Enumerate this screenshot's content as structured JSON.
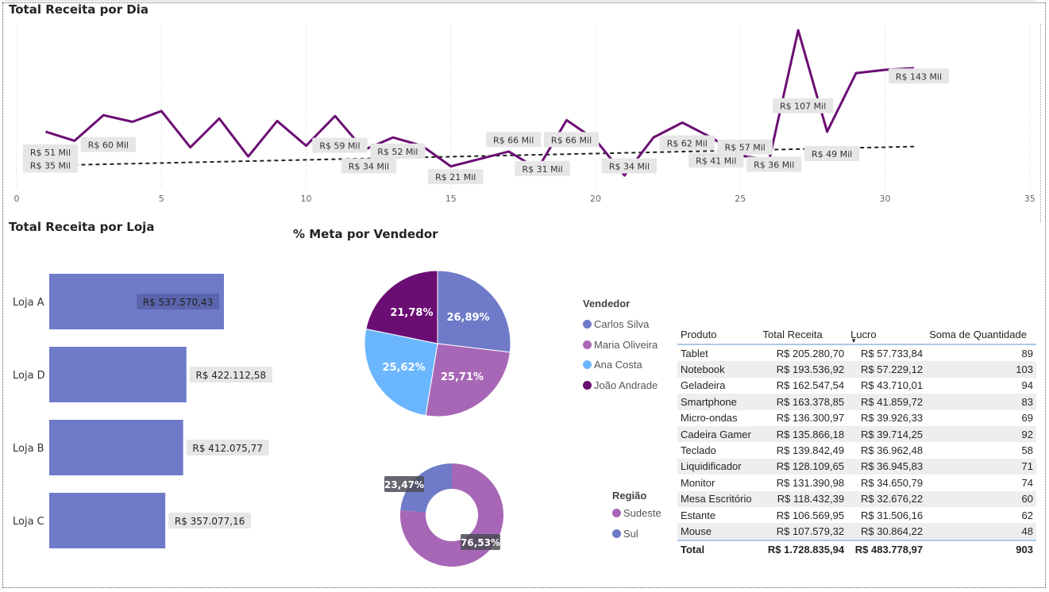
{
  "line_chart": {
    "title": "Total Receita por Dia",
    "x_ticks": [
      "0",
      "5",
      "10",
      "15",
      "20",
      "25",
      "30",
      "35"
    ],
    "data_labels": [
      {
        "x": 1,
        "y": 51,
        "text": "R$ 51 Mil"
      },
      {
        "x": 1,
        "y": 35,
        "text": "R$ 35 Mil"
      },
      {
        "x": 3,
        "y": 60,
        "text": "R$ 60 Mil"
      },
      {
        "x": 11,
        "y": 59,
        "text": "R$ 59 Mil"
      },
      {
        "x": 12,
        "y": 34,
        "text": "R$ 34 Mil"
      },
      {
        "x": 13,
        "y": 52,
        "text": "R$ 52 Mil"
      },
      {
        "x": 15,
        "y": 21,
        "text": "R$ 21 Mil"
      },
      {
        "x": 17,
        "y": 66,
        "text": "R$ 66 Mil"
      },
      {
        "x": 18,
        "y": 31,
        "text": "R$ 31 Mil"
      },
      {
        "x": 19,
        "y": 66,
        "text": "R$ 66 Mil"
      },
      {
        "x": 21,
        "y": 34,
        "text": "R$ 34 Mil"
      },
      {
        "x": 23,
        "y": 62,
        "text": "R$ 62 Mil"
      },
      {
        "x": 24,
        "y": 41,
        "text": "R$ 41 Mil"
      },
      {
        "x": 25,
        "y": 57,
        "text": "R$ 57 Mil"
      },
      {
        "x": 26,
        "y": 36,
        "text": "R$ 36 Mil"
      },
      {
        "x": 27,
        "y": 107,
        "text": "R$ 107 Mil"
      },
      {
        "x": 28,
        "y": 49,
        "text": "R$ 49 Mil"
      },
      {
        "x": 31,
        "y": 143,
        "text": "R$ 143 Mil"
      }
    ]
  },
  "bar_chart": {
    "title": "Total Receita por Loja"
  },
  "pie_chart": {
    "title": "% Meta por Vendedor",
    "legend_title": "Vendedor"
  },
  "donut_chart": {
    "legend_title": "Região"
  },
  "table": {
    "headers": [
      "Produto",
      "Total Receita",
      "Lucro",
      "Soma de Quantidade"
    ],
    "rows": [
      [
        "Tablet",
        "R$ 205.280,70",
        "R$ 57.733,84",
        "89"
      ],
      [
        "Notebook",
        "R$ 193.536,92",
        "R$ 57.229,12",
        "103"
      ],
      [
        "Geladeira",
        "R$ 162.547,54",
        "R$ 43.710,01",
        "94"
      ],
      [
        "Smartphone",
        "R$ 163.378,85",
        "R$ 41.859,72",
        "83"
      ],
      [
        "Micro-ondas",
        "R$ 136.300,97",
        "R$ 39.926,33",
        "69"
      ],
      [
        "Cadeira Gamer",
        "R$ 135.866,18",
        "R$ 39.714,25",
        "92"
      ],
      [
        "Teclado",
        "R$ 139.842,49",
        "R$ 36.962,48",
        "58"
      ],
      [
        "Liquidificador",
        "R$ 128.109,65",
        "R$ 36.945,83",
        "71"
      ],
      [
        "Monitor",
        "R$ 131.390,98",
        "R$ 34.650,79",
        "74"
      ],
      [
        "Mesa Escritório",
        "R$ 118.432,39",
        "R$ 32.676,22",
        "60"
      ],
      [
        "Estante",
        "R$ 106.569,95",
        "R$ 31.506,16",
        "62"
      ],
      [
        "Mouse",
        "R$ 107.579,32",
        "R$ 30.864,22",
        "48"
      ]
    ],
    "total": [
      "Total",
      "R$ 1.728.835,94",
      "R$ 483.778,97",
      "903"
    ]
  },
  "colors": {
    "line": "#6b0e74",
    "bar": "#6f7ac8",
    "carlos": "#6f7ac8",
    "maria": "#a867b6",
    "ana": "#6bb7ff",
    "joao": "#6b0e74",
    "sudeste": "#a867b6",
    "sul": "#6f7ac8"
  },
  "chart_data": [
    {
      "type": "line",
      "title": "Total Receita por Dia",
      "x": [
        1,
        2,
        3,
        4,
        5,
        6,
        7,
        8,
        9,
        10,
        11,
        12,
        13,
        14,
        15,
        16,
        17,
        18,
        19,
        20,
        21,
        22,
        23,
        24,
        25,
        26,
        27,
        28,
        29,
        30,
        31
      ],
      "y": [
        76,
        65,
        96,
        88,
        101,
        57,
        92,
        46,
        89,
        59,
        95,
        54,
        69,
        59,
        34,
        43,
        52,
        31,
        90,
        66,
        23,
        69,
        87,
        69,
        47,
        42,
        199,
        76,
        147,
        151,
        153
      ],
      "trend_y": [
        35,
        58
      ],
      "xlim": [
        0,
        35
      ],
      "ylim": [
        0,
        210
      ],
      "grid": "vertical"
    },
    {
      "type": "bar",
      "title": "Total Receita por Loja",
      "orientation": "horizontal",
      "categories": [
        "Loja A",
        "Loja D",
        "Loja B",
        "Loja C"
      ],
      "values": [
        537570.43,
        422112.58,
        412075.77,
        357077.16
      ],
      "labels": [
        "R$ 537.570,43",
        "R$ 422.112,58",
        "R$ 412.075,77",
        "R$ 357.077,16"
      ]
    },
    {
      "type": "pie",
      "title": "% Meta por Vendedor",
      "categories": [
        "Carlos Silva",
        "Maria Oliveira",
        "Ana Costa",
        "João Andrade"
      ],
      "values": [
        26.89,
        25.71,
        25.62,
        21.78
      ],
      "labels": [
        "26,89%",
        "25,71%",
        "25,62%",
        "21,78%"
      ]
    },
    {
      "type": "pie",
      "subtype": "donut",
      "categories": [
        "Sudeste",
        "Sul"
      ],
      "values": [
        76.53,
        23.47
      ],
      "labels": [
        "76,53%",
        "23,47%"
      ]
    }
  ]
}
